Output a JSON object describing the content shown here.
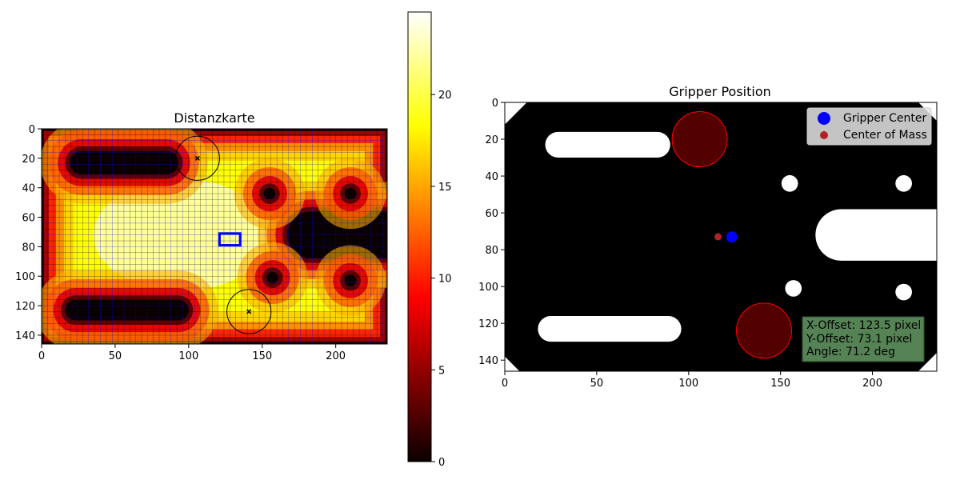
{
  "chart_data": [
    {
      "type": "heatmap",
      "title": "Distanzkarte",
      "xlim": [
        0,
        235
      ],
      "ylim": [
        146,
        0
      ],
      "xticks": [
        0,
        50,
        100,
        150,
        200
      ],
      "yticks": [
        0,
        20,
        40,
        60,
        80,
        100,
        120,
        140
      ],
      "colormap": "hot",
      "colorbar": {
        "range": [
          0,
          24.5
        ],
        "ticks": [
          0,
          5,
          10,
          15,
          20
        ]
      },
      "distance_field": {
        "border_frame": [
          0,
          0,
          234,
          145
        ],
        "obstacles": [
          {
            "kind": "capsule",
            "from": [
              27,
              23
            ],
            "to": [
              85,
              23
            ],
            "r": 8
          },
          {
            "kind": "capsule",
            "from": [
              23,
              123
            ],
            "to": [
              93,
              123
            ],
            "r": 7
          },
          {
            "kind": "capsule",
            "from": [
              183,
              72
            ],
            "to": [
              235,
              72
            ],
            "r": 16
          },
          {
            "kind": "disc",
            "center": [
              155,
              44
            ],
            "r": 4
          },
          {
            "kind": "disc",
            "center": [
              210,
              44
            ],
            "r": 4
          },
          {
            "kind": "disc",
            "center": [
              157,
              101
            ],
            "r": 4
          },
          {
            "kind": "disc",
            "center": [
              210,
              103
            ],
            "r": 4
          }
        ]
      },
      "grid": true,
      "grid_colors": [
        "#0000ff",
        "#000000"
      ],
      "grid_spacing": 4,
      "markers": [
        {
          "x": 106,
          "y": 20,
          "symbol": "x",
          "circle_radius": 15
        },
        {
          "x": 141,
          "y": 124,
          "symbol": "x",
          "circle_radius": 15
        }
      ],
      "gripper_box": {
        "x": 121,
        "y": 71,
        "w": 14,
        "h": 8,
        "color": "#0000ff"
      }
    },
    {
      "type": "scatter",
      "title": "Gripper Position",
      "xlim": [
        0,
        235
      ],
      "ylim": [
        146,
        0
      ],
      "xticks": [
        0,
        50,
        100,
        150,
        200
      ],
      "yticks": [
        0,
        20,
        40,
        60,
        80,
        100,
        120,
        140
      ],
      "background": "binary occupancy map",
      "white_regions": [
        {
          "kind": "capsule",
          "from": [
            29,
            23
          ],
          "to": [
            83,
            23
          ],
          "r": 7
        },
        {
          "kind": "capsule",
          "from": [
            25,
            123
          ],
          "to": [
            89,
            123
          ],
          "r": 7
        },
        {
          "kind": "capsule",
          "from": [
            183,
            72
          ],
          "to": [
            235,
            72
          ],
          "r": 14
        },
        {
          "kind": "disc",
          "center": [
            155,
            44
          ],
          "r": 4.5
        },
        {
          "kind": "disc",
          "center": [
            217,
            44
          ],
          "r": 4.5
        },
        {
          "kind": "disc",
          "center": [
            157,
            101
          ],
          "r": 4.5
        },
        {
          "kind": "disc",
          "center": [
            217,
            103
          ],
          "r": 4.5
        },
        {
          "kind": "corner",
          "corner": "top-left",
          "size": 12
        },
        {
          "kind": "corner",
          "corner": "bottom-left",
          "size": 8
        },
        {
          "kind": "corner",
          "corner": "top-right",
          "size": 10
        },
        {
          "kind": "corner",
          "corner": "bottom-right",
          "size": 10
        }
      ],
      "circles": [
        {
          "cx": 106,
          "cy": 20,
          "r": 15,
          "fill": "#520000",
          "stroke": "#ff0000"
        },
        {
          "cx": 141,
          "cy": 124,
          "r": 15,
          "fill": "#520000",
          "stroke": "#ff0000"
        }
      ],
      "series": [
        {
          "name": "Gripper Center",
          "x": [
            123.5
          ],
          "y": [
            73.1
          ],
          "color": "#0000ff",
          "marker": "large"
        },
        {
          "name": "Center of Mass",
          "x": [
            116
          ],
          "y": [
            73
          ],
          "color": "#b22222",
          "marker": "small"
        }
      ],
      "legend": {
        "placement": "top-right",
        "entries": [
          "Gripper Center",
          "Center of Mass"
        ]
      },
      "annotation": {
        "lines": [
          "X-Offset: 123.5 pixel",
          "Y-Offset: 73.1 pixel",
          "Angle: 71.2 deg"
        ],
        "background": "#5a8a5a"
      }
    }
  ]
}
